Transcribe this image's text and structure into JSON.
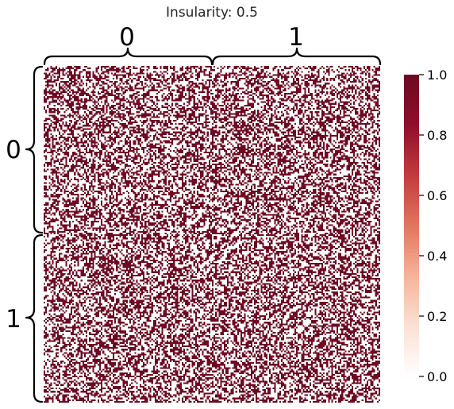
{
  "chart_data": {
    "type": "heatmap",
    "title": "Insularity: 0.5",
    "insularity": 0.5,
    "block_labels": [
      "0",
      "1"
    ],
    "nodes_per_block": 100,
    "value_range": [
      0.0,
      1.0
    ],
    "values_present": [
      0,
      1
    ],
    "colormap": "RdBu_r (upper half, white to dark red)",
    "colorbar": {
      "ticks": [
        0.0,
        0.2,
        0.4,
        0.6,
        0.8,
        1.0
      ],
      "tick_labels": [
        "0.0",
        "0.2",
        "0.4",
        "0.6",
        "0.8",
        "1.0"
      ],
      "placement": "right"
    },
    "block_density": [
      [
        0.5,
        0.5
      ],
      [
        0.5,
        0.5
      ]
    ],
    "colors": {
      "zero": "#ffffff",
      "one": "#6d0a22",
      "scale": [
        "#ffffff",
        "#fbe1d4",
        "#f6b39a",
        "#e2755e",
        "#c13b3d",
        "#8f0e2a",
        "#6d0a22"
      ]
    }
  }
}
